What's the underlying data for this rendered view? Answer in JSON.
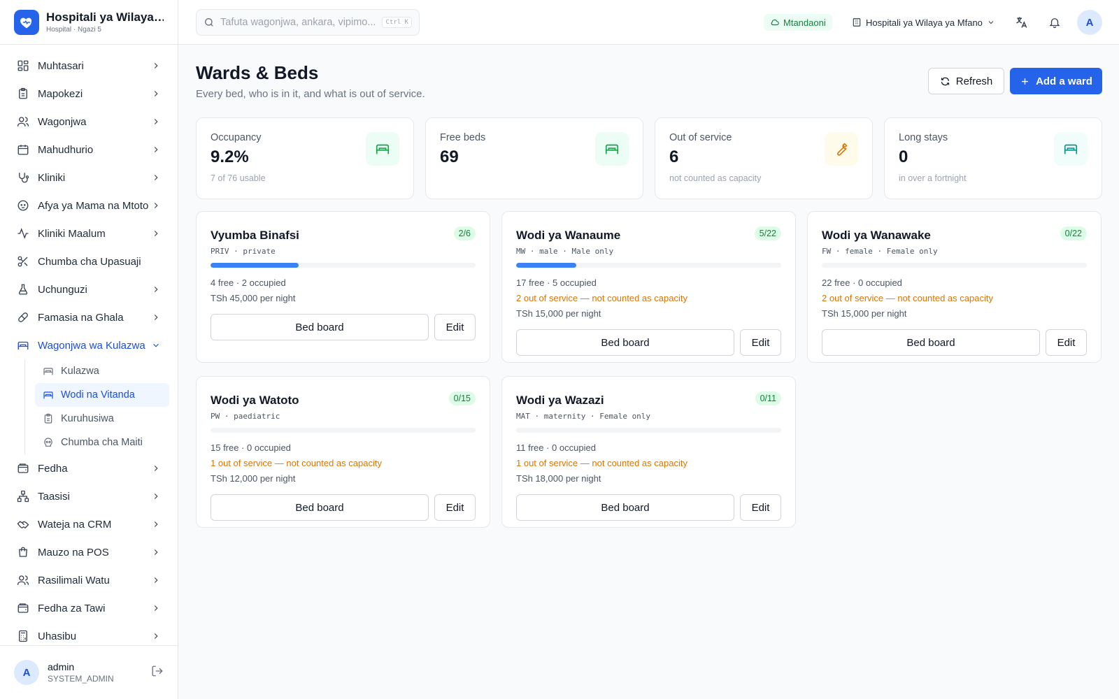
{
  "brand": {
    "title": "Hospitali ya Wilaya ya Mfano",
    "subtitle": "Hospital · Ngazi 5"
  },
  "sidebar": {
    "items": [
      {
        "label": "Muhtasari"
      },
      {
        "label": "Mapokezi"
      },
      {
        "label": "Wagonjwa"
      },
      {
        "label": "Mahudhurio"
      },
      {
        "label": "Kliniki"
      },
      {
        "label": "Afya ya Mama na Mtoto"
      },
      {
        "label": "Kliniki Maalum"
      },
      {
        "label": "Chumba cha Upasuaji"
      },
      {
        "label": "Uchunguzi"
      },
      {
        "label": "Famasia na Ghala"
      },
      {
        "label": "Wagonjwa wa Kulazwa"
      },
      {
        "label": "Fedha"
      },
      {
        "label": "Taasisi"
      },
      {
        "label": "Wateja na CRM"
      },
      {
        "label": "Mauzo na POS"
      },
      {
        "label": "Rasilimali Watu"
      },
      {
        "label": "Fedha za Tawi"
      },
      {
        "label": "Uhasibu"
      }
    ],
    "subitems": [
      {
        "label": "Kulazwa"
      },
      {
        "label": "Wodi na Vitanda"
      },
      {
        "label": "Kuruhusiwa"
      },
      {
        "label": "Chumba cha Maiti"
      }
    ]
  },
  "user": {
    "initial": "A",
    "name": "admin",
    "role": "SYSTEM_ADMIN"
  },
  "topbar": {
    "search_placeholder": "Tafuta wagonjwa, ankara, vipimo...",
    "shortcut": "Ctrl K",
    "status": "Mtandaoni",
    "facility": "Hospitali ya Wilaya ya Mfano",
    "avatar_initial": "A"
  },
  "page": {
    "title": "Wards & Beds",
    "subtitle": "Every bed, who is in it, and what is out of service.",
    "refresh_label": "Refresh",
    "add_label": "Add a ward"
  },
  "stats": [
    {
      "label": "Occupancy",
      "value": "9.2%",
      "note": "7 of 76 usable",
      "icon": "bed-icon",
      "color": "#16a34a"
    },
    {
      "label": "Free beds",
      "value": "69",
      "note": "",
      "icon": "bed-icon",
      "color": "#16a34a"
    },
    {
      "label": "Out of service",
      "value": "6",
      "note": "not counted as capacity",
      "icon": "wrench-icon",
      "color": "#d97706"
    },
    {
      "label": "Long stays",
      "value": "0",
      "note": "in over a fortnight",
      "icon": "bed-icon",
      "color": "#0d9488"
    }
  ],
  "wards": [
    {
      "name": "Vyumba Binafsi",
      "meta": "PRIV · private",
      "badge": "2/6",
      "occupancy": 0.333,
      "free_line": "4 free · 2 occupied",
      "warn": "",
      "price": "TSh 45,000 per night",
      "board_label": "Bed board",
      "edit_label": "Edit"
    },
    {
      "name": "Wodi ya Wanaume",
      "meta": "MW · male · Male only",
      "badge": "5/22",
      "occupancy": 0.227,
      "free_line": "17 free · 5 occupied",
      "warn": "2 out of service — not counted as capacity",
      "price": "TSh 15,000 per night",
      "board_label": "Bed board",
      "edit_label": "Edit"
    },
    {
      "name": "Wodi ya Wanawake",
      "meta": "FW · female · Female only",
      "badge": "0/22",
      "occupancy": 0,
      "free_line": "22 free · 0 occupied",
      "warn": "2 out of service — not counted as capacity",
      "price": "TSh 15,000 per night",
      "board_label": "Bed board",
      "edit_label": "Edit"
    },
    {
      "name": "Wodi ya Watoto",
      "meta": "PW · paediatric",
      "badge": "0/15",
      "occupancy": 0,
      "free_line": "15 free · 0 occupied",
      "warn": "1 out of service — not counted as capacity",
      "price": "TSh 12,000 per night",
      "board_label": "Bed board",
      "edit_label": "Edit"
    },
    {
      "name": "Wodi ya Wazazi",
      "meta": "MAT · maternity · Female only",
      "badge": "0/11",
      "occupancy": 0,
      "free_line": "11 free · 0 occupied",
      "warn": "1 out of service — not counted as capacity",
      "price": "TSh 18,000 per night",
      "board_label": "Bed board",
      "edit_label": "Edit"
    }
  ],
  "colors": {
    "accent": "#2563eb",
    "success": "#16a34a",
    "warning": "#d97706"
  }
}
